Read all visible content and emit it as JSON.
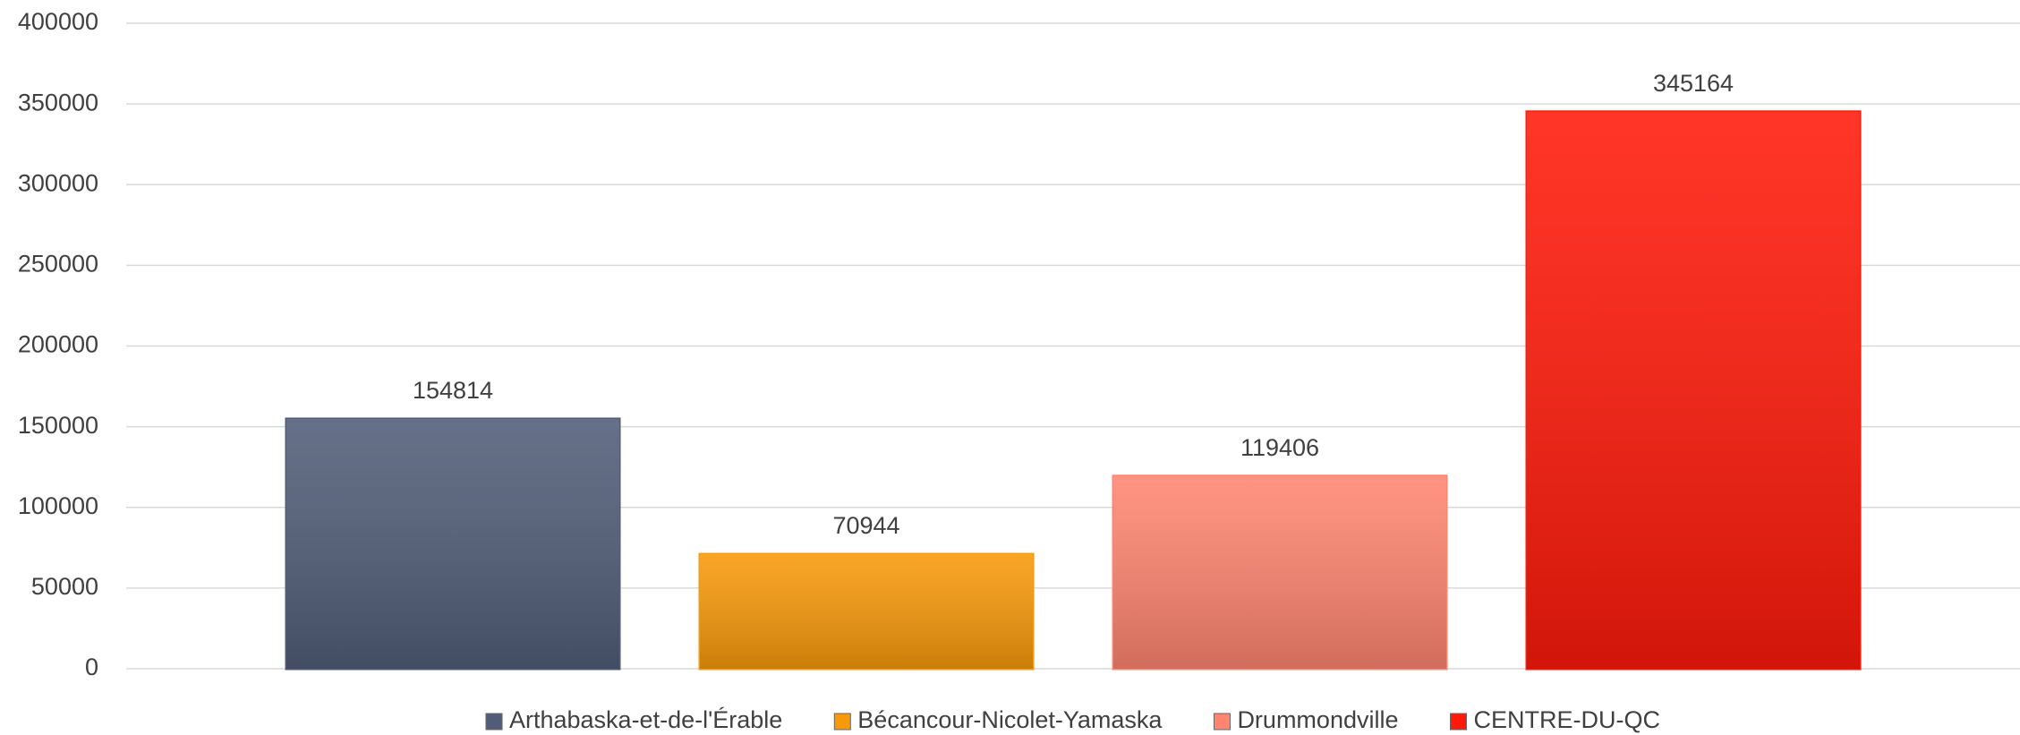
{
  "chart_data": {
    "type": "bar",
    "categories": [
      null
    ],
    "series": [
      {
        "name": "Arthabaska-et-de-l'Érable",
        "color": "#515d78",
        "values": [
          154814
        ]
      },
      {
        "name": "Bécancour-Nicolet-Yamaska",
        "color": "#f7990a",
        "values": [
          70944
        ]
      },
      {
        "name": "Drummondville",
        "color": "#ff8570",
        "values": [
          119406
        ]
      },
      {
        "name": "CENTRE-DU-QC",
        "color": "#ff1a0a",
        "values": [
          345164
        ]
      }
    ],
    "ylim": [
      0,
      400000
    ],
    "yticks": [
      0,
      50000,
      100000,
      150000,
      200000,
      250000,
      300000,
      350000,
      400000
    ],
    "grid": true,
    "legend": "bottom"
  }
}
